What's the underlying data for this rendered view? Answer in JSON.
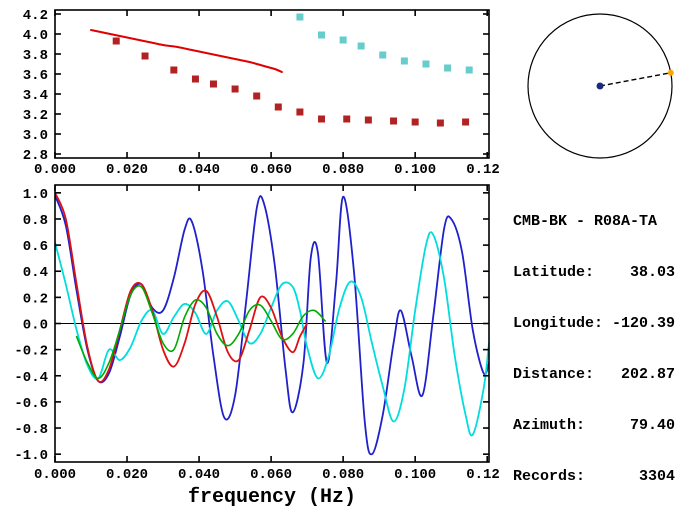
{
  "info": {
    "lines": [
      "CMB-BK - R08A-TA",
      "Latitude:    38.03",
      "Longitude: -120.39",
      "Distance:   202.87",
      "Azimuth:     79.40",
      "Records:      3304"
    ]
  },
  "azimuth_diagram": {
    "azimuth_deg": 79.4,
    "circle_color": "#000000",
    "center_dot_color": "#1a2a80",
    "edge_dot_color": "#ffa500"
  },
  "chart_data": [
    {
      "id": "dispersion",
      "type": "scatter",
      "title": "",
      "xlabel": "",
      "ylabel": "",
      "xlim": [
        0,
        0.1205
      ],
      "ylim": [
        2.76,
        4.24
      ],
      "grid": false,
      "xticks": {
        "values": [
          0,
          0.02,
          0.04,
          0.06,
          0.08,
          0.1,
          0.12
        ],
        "labels": [
          "0.000",
          "0.020",
          "0.040",
          "0.060",
          "0.080",
          "0.100",
          "0.120"
        ]
      },
      "yticks": {
        "values": [
          2.8,
          3.0,
          3.2,
          3.4,
          3.6,
          3.8,
          4.0,
          4.2
        ],
        "labels": [
          "2.8",
          "3.0",
          "3.2",
          "3.4",
          "3.6",
          "3.8",
          "4.0",
          "4.2"
        ]
      },
      "series": [
        {
          "name": "model-dispersion-curve",
          "type": "line",
          "color": "#e00000",
          "width": 2,
          "points": [
            [
              0.01,
              4.04
            ],
            [
              0.014,
              4.01
            ],
            [
              0.018,
              3.98
            ],
            [
              0.022,
              3.95
            ],
            [
              0.026,
              3.92
            ],
            [
              0.03,
              3.89
            ],
            [
              0.034,
              3.87
            ],
            [
              0.038,
              3.84
            ],
            [
              0.042,
              3.81
            ],
            [
              0.046,
              3.78
            ],
            [
              0.05,
              3.75
            ],
            [
              0.054,
              3.72
            ],
            [
              0.058,
              3.68
            ],
            [
              0.061,
              3.65
            ],
            [
              0.063,
              3.62
            ]
          ]
        },
        {
          "name": "group-velocity-measurements",
          "type": "squares",
          "color": "#b22222",
          "points": [
            [
              0.017,
              3.93
            ],
            [
              0.025,
              3.78
            ],
            [
              0.033,
              3.64
            ],
            [
              0.039,
              3.55
            ],
            [
              0.044,
              3.5
            ],
            [
              0.05,
              3.45
            ],
            [
              0.056,
              3.38
            ],
            [
              0.062,
              3.27
            ],
            [
              0.068,
              3.22
            ],
            [
              0.074,
              3.15
            ],
            [
              0.081,
              3.15
            ],
            [
              0.087,
              3.14
            ],
            [
              0.094,
              3.13
            ],
            [
              0.1,
              3.12
            ],
            [
              0.107,
              3.11
            ],
            [
              0.114,
              3.12
            ]
          ]
        },
        {
          "name": "phase-velocity-measurements",
          "type": "squares",
          "color": "#66cccc",
          "points": [
            [
              0.068,
              4.17
            ],
            [
              0.074,
              3.99
            ],
            [
              0.08,
              3.94
            ],
            [
              0.085,
              3.88
            ],
            [
              0.091,
              3.79
            ],
            [
              0.097,
              3.73
            ],
            [
              0.103,
              3.7
            ],
            [
              0.109,
              3.66
            ],
            [
              0.115,
              3.64
            ]
          ]
        }
      ]
    },
    {
      "id": "correlation",
      "type": "line",
      "title": "",
      "xlabel": "frequency (Hz)",
      "ylabel": "",
      "xlim": [
        0,
        0.1205
      ],
      "ylim": [
        -1.06,
        1.06
      ],
      "zero_line": true,
      "grid": false,
      "xticks": {
        "values": [
          0,
          0.02,
          0.04,
          0.06,
          0.08,
          0.1,
          0.12
        ],
        "labels": [
          "0.000",
          "0.020",
          "0.040",
          "0.060",
          "0.080",
          "0.100",
          "0.120"
        ]
      },
      "yticks": {
        "values": [
          -1.0,
          -0.8,
          -0.6,
          -0.4,
          -0.2,
          0.0,
          0.2,
          0.4,
          0.6,
          0.8,
          1.0
        ],
        "labels": [
          "-1.0",
          "-0.8",
          "-0.6",
          "-0.4",
          "-0.2",
          "0.0",
          "0.2",
          "0.4",
          "0.6",
          "0.8",
          "1.0"
        ]
      },
      "series": [
        {
          "name": "observed-correlation-blue",
          "type": "line",
          "color": "#2020cc",
          "width": 1.8,
          "points": [
            [
              0.0,
              0.98
            ],
            [
              0.003,
              0.75
            ],
            [
              0.006,
              0.25
            ],
            [
              0.009,
              -0.2
            ],
            [
              0.012,
              -0.44
            ],
            [
              0.015,
              -0.38
            ],
            [
              0.018,
              -0.1
            ],
            [
              0.021,
              0.22
            ],
            [
              0.024,
              0.3
            ],
            [
              0.027,
              0.12
            ],
            [
              0.03,
              0.1
            ],
            [
              0.033,
              0.35
            ],
            [
              0.036,
              0.72
            ],
            [
              0.038,
              0.78
            ],
            [
              0.041,
              0.4
            ],
            [
              0.044,
              -0.25
            ],
            [
              0.047,
              -0.72
            ],
            [
              0.05,
              -0.55
            ],
            [
              0.053,
              0.15
            ],
            [
              0.056,
              0.88
            ],
            [
              0.058,
              0.92
            ],
            [
              0.061,
              0.45
            ],
            [
              0.064,
              -0.35
            ],
            [
              0.066,
              -0.68
            ],
            [
              0.069,
              -0.3
            ],
            [
              0.071,
              0.5
            ],
            [
              0.073,
              0.54
            ],
            [
              0.0755,
              -0.3
            ],
            [
              0.078,
              0.3
            ],
            [
              0.08,
              0.97
            ],
            [
              0.083,
              0.4
            ],
            [
              0.086,
              -0.75
            ],
            [
              0.088,
              -1.0
            ],
            [
              0.091,
              -0.7
            ],
            [
              0.094,
              -0.15
            ],
            [
              0.096,
              0.1
            ],
            [
              0.099,
              -0.25
            ],
            [
              0.102,
              -0.55
            ],
            [
              0.105,
              0.05
            ],
            [
              0.108,
              0.72
            ],
            [
              0.11,
              0.8
            ],
            [
              0.113,
              0.55
            ],
            [
              0.116,
              -0.05
            ],
            [
              0.119,
              -0.38
            ],
            [
              0.1205,
              -0.3
            ]
          ]
        },
        {
          "name": "observed-correlation-cyan",
          "type": "line",
          "color": "#00dddd",
          "width": 1.8,
          "points": [
            [
              0.0,
              0.62
            ],
            [
              0.003,
              0.3
            ],
            [
              0.006,
              -0.05
            ],
            [
              0.009,
              -0.32
            ],
            [
              0.012,
              -0.42
            ],
            [
              0.015,
              -0.2
            ],
            [
              0.018,
              -0.28
            ],
            [
              0.021,
              -0.18
            ],
            [
              0.024,
              0.02
            ],
            [
              0.027,
              0.1
            ],
            [
              0.03,
              -0.08
            ],
            [
              0.033,
              0.05
            ],
            [
              0.036,
              0.15
            ],
            [
              0.039,
              0.08
            ],
            [
              0.042,
              -0.08
            ],
            [
              0.045,
              0.1
            ],
            [
              0.048,
              0.17
            ],
            [
              0.051,
              0.02
            ],
            [
              0.054,
              -0.15
            ],
            [
              0.057,
              -0.08
            ],
            [
              0.06,
              0.12
            ],
            [
              0.063,
              0.3
            ],
            [
              0.066,
              0.28
            ],
            [
              0.068,
              0.1
            ],
            [
              0.07,
              -0.18
            ],
            [
              0.073,
              -0.42
            ],
            [
              0.076,
              -0.25
            ],
            [
              0.079,
              0.12
            ],
            [
              0.082,
              0.32
            ],
            [
              0.085,
              0.2
            ],
            [
              0.088,
              -0.15
            ],
            [
              0.091,
              -0.48
            ],
            [
              0.094,
              -0.75
            ],
            [
              0.097,
              -0.5
            ],
            [
              0.1,
              0.1
            ],
            [
              0.103,
              0.6
            ],
            [
              0.105,
              0.68
            ],
            [
              0.108,
              0.35
            ],
            [
              0.111,
              -0.25
            ],
            [
              0.114,
              -0.7
            ],
            [
              0.116,
              -0.85
            ],
            [
              0.119,
              -0.5
            ],
            [
              0.1205,
              -0.15
            ]
          ]
        },
        {
          "name": "model-correlation-red",
          "type": "line",
          "color": "#dd1111",
          "width": 1.8,
          "points": [
            [
              0.0,
              1.0
            ],
            [
              0.003,
              0.8
            ],
            [
              0.006,
              0.3
            ],
            [
              0.009,
              -0.18
            ],
            [
              0.012,
              -0.44
            ],
            [
              0.015,
              -0.35
            ],
            [
              0.018,
              -0.05
            ],
            [
              0.021,
              0.25
            ],
            [
              0.024,
              0.3
            ],
            [
              0.027,
              0.1
            ],
            [
              0.03,
              -0.2
            ],
            [
              0.033,
              -0.33
            ],
            [
              0.036,
              -0.15
            ],
            [
              0.039,
              0.15
            ],
            [
              0.042,
              0.25
            ],
            [
              0.045,
              0.05
            ],
            [
              0.048,
              -0.22
            ],
            [
              0.051,
              -0.28
            ],
            [
              0.054,
              -0.05
            ],
            [
              0.057,
              0.2
            ],
            [
              0.06,
              0.12
            ],
            [
              0.063,
              -0.1
            ],
            [
              0.066,
              -0.22
            ],
            [
              0.068,
              -0.1
            ],
            [
              0.07,
              0.0
            ]
          ]
        },
        {
          "name": "model-correlation-green",
          "type": "line",
          "color": "#00aa00",
          "width": 1.6,
          "points": [
            [
              0.006,
              -0.1
            ],
            [
              0.009,
              -0.3
            ],
            [
              0.012,
              -0.42
            ],
            [
              0.015,
              -0.3
            ],
            [
              0.018,
              -0.05
            ],
            [
              0.021,
              0.22
            ],
            [
              0.024,
              0.28
            ],
            [
              0.027,
              0.08
            ],
            [
              0.03,
              -0.15
            ],
            [
              0.033,
              -0.2
            ],
            [
              0.036,
              0.05
            ],
            [
              0.039,
              0.18
            ],
            [
              0.042,
              0.12
            ],
            [
              0.045,
              -0.08
            ],
            [
              0.048,
              -0.17
            ],
            [
              0.051,
              -0.08
            ],
            [
              0.054,
              0.1
            ],
            [
              0.057,
              0.14
            ],
            [
              0.06,
              0.02
            ],
            [
              0.063,
              -0.12
            ],
            [
              0.066,
              -0.08
            ],
            [
              0.069,
              0.06
            ],
            [
              0.072,
              0.1
            ],
            [
              0.075,
              0.02
            ]
          ]
        }
      ]
    }
  ]
}
